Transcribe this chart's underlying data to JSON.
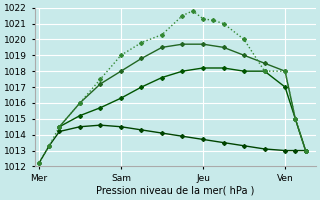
{
  "background_color": "#c8eaea",
  "grid_color": "#ffffff",
  "title": "Pression niveau de la mer( hPa )",
  "ylim": [
    1012,
    1022
  ],
  "yticks": [
    1012,
    1013,
    1014,
    1015,
    1016,
    1017,
    1018,
    1019,
    1020,
    1021,
    1022
  ],
  "xtick_labels": [
    "Mer",
    "Sam",
    "Jeu",
    "Ven"
  ],
  "xtick_positions": [
    0,
    4,
    8,
    12
  ],
  "xlim": [
    -0.2,
    13.5
  ],
  "vlines": [
    0,
    4,
    8,
    12
  ],
  "vline_color": "#888888",
  "series": [
    {
      "x": [
        0,
        0.5,
        1,
        2,
        3,
        4,
        5,
        6,
        7,
        8,
        9,
        10,
        11,
        12,
        12.5,
        13
      ],
      "y": [
        1012.2,
        1013.3,
        1014.2,
        1014.5,
        1014.6,
        1014.5,
        1014.3,
        1014.1,
        1013.9,
        1013.7,
        1013.5,
        1013.3,
        1013.1,
        1013.0,
        1013.0,
        1013.0
      ],
      "color": "#004400",
      "lw": 1.0,
      "marker": "D",
      "ms": 2.0,
      "dotted": false
    },
    {
      "x": [
        1,
        2,
        3,
        4,
        5,
        6,
        7,
        8,
        9,
        10,
        11,
        12,
        12.5,
        13
      ],
      "y": [
        1014.5,
        1015.2,
        1015.7,
        1016.3,
        1017.0,
        1017.6,
        1018.0,
        1018.2,
        1018.2,
        1018.0,
        1018.0,
        1017.0,
        1015.0,
        1013.0
      ],
      "color": "#005500",
      "lw": 1.0,
      "marker": "D",
      "ms": 2.0,
      "dotted": false
    },
    {
      "x": [
        1,
        2,
        3,
        4,
        5,
        6,
        7,
        8,
        9,
        10,
        11,
        12,
        12.5,
        13
      ],
      "y": [
        1014.5,
        1016.0,
        1017.2,
        1018.0,
        1018.8,
        1019.5,
        1019.7,
        1019.7,
        1019.5,
        1019.0,
        1018.5,
        1018.0,
        1015.0,
        1013.0
      ],
      "color": "#226622",
      "lw": 1.0,
      "marker": "D",
      "ms": 2.0,
      "dotted": false
    },
    {
      "x": [
        0,
        0.5,
        1,
        2,
        3,
        4,
        5,
        6,
        7,
        7.5,
        8,
        8.5,
        9,
        10,
        11,
        12,
        12.5,
        13
      ],
      "y": [
        1012.2,
        1013.3,
        1014.5,
        1016.0,
        1017.5,
        1019.0,
        1019.8,
        1020.3,
        1021.5,
        1021.8,
        1021.3,
        1021.2,
        1021.0,
        1020.0,
        1018.0,
        1018.0,
        1015.0,
        1013.0
      ],
      "color": "#338833",
      "lw": 1.0,
      "marker": "D",
      "ms": 2.0,
      "dotted": true
    }
  ]
}
